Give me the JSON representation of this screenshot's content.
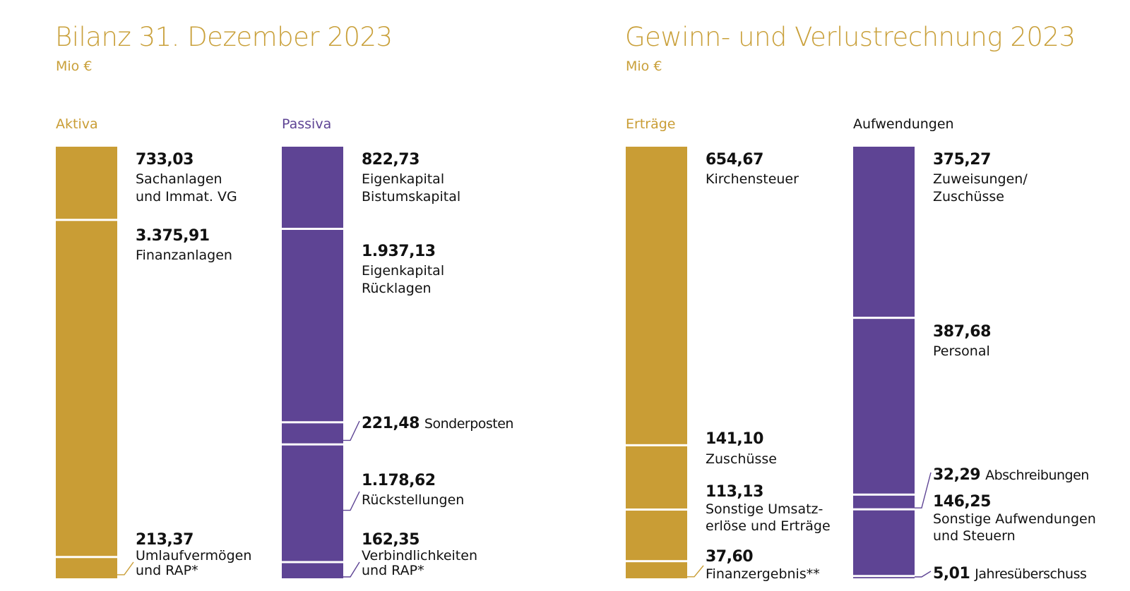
{
  "colors": {
    "gold": "#c99d35",
    "purple": "#5e4494",
    "text": "#111111",
    "divider": "#ffffff"
  },
  "chart_data": [
    {
      "type": "stacked-bar",
      "title": "Bilanz 31. Dezember 2023",
      "subtitle": "Mio €",
      "columns": [
        {
          "name": "Aktiva",
          "color": "#c99d35",
          "segments": [
            {
              "value": 733.03,
              "value_label": "733,03",
              "label": [
                "Sachanlagen",
                "und Immat. VG"
              ]
            },
            {
              "value": 3375.91,
              "value_label": "3.375,91",
              "label": [
                "Finanzanlagen"
              ]
            },
            {
              "value": 213.37,
              "value_label": "213,37",
              "label": [
                "Umlaufvermögen",
                "und RAP*"
              ]
            }
          ]
        },
        {
          "name": "Passiva",
          "color": "#5e4494",
          "segments": [
            {
              "value": 822.73,
              "value_label": "822,73",
              "label": [
                "Eigenkapital",
                "Bistumskapital"
              ]
            },
            {
              "value": 1937.13,
              "value_label": "1.937,13",
              "label": [
                "Eigenkapital",
                "Rücklagen"
              ]
            },
            {
              "value": 221.48,
              "value_label": "221,48",
              "label": [
                "Sonderposten"
              ]
            },
            {
              "value": 1178.62,
              "value_label": "1.178,62",
              "label": [
                "Rückstellungen"
              ]
            },
            {
              "value": 162.35,
              "value_label": "162,35",
              "label": [
                "Verbindlichkeiten",
                "und RAP*"
              ]
            }
          ]
        }
      ]
    },
    {
      "type": "stacked-bar",
      "title": "Gewinn- und Verlustrechnung 2023",
      "subtitle": "Mio €",
      "columns": [
        {
          "name": "Erträge",
          "color": "#c99d35",
          "segments": [
            {
              "value": 654.67,
              "value_label": "654,67",
              "label": [
                "Kirchensteuer"
              ]
            },
            {
              "value": 141.1,
              "value_label": "141,10",
              "label": [
                "Zuschüsse"
              ]
            },
            {
              "value": 113.13,
              "value_label": "113,13",
              "label": [
                "Sonstige Umsatz-",
                "erlöse und Erträge"
              ]
            },
            {
              "value": 37.6,
              "value_label": "37,60",
              "label": [
                "Finanzergebnis**"
              ]
            }
          ]
        },
        {
          "name": "Aufwendungen",
          "color": "#5e4494",
          "segments": [
            {
              "value": 375.27,
              "value_label": "375,27",
              "label": [
                "Zuweisungen/",
                "Zuschüsse"
              ]
            },
            {
              "value": 387.68,
              "value_label": "387,68",
              "label": [
                "Personal"
              ]
            },
            {
              "value": 32.29,
              "value_label": "32,29",
              "label": [
                "Abschreibungen"
              ]
            },
            {
              "value": 146.25,
              "value_label": "146,25",
              "label": [
                "Sonstige Aufwendungen",
                "und Steuern"
              ]
            },
            {
              "value": 5.01,
              "value_label": "5,01",
              "label": [
                "Jahresüberschuss"
              ]
            }
          ]
        }
      ]
    }
  ]
}
